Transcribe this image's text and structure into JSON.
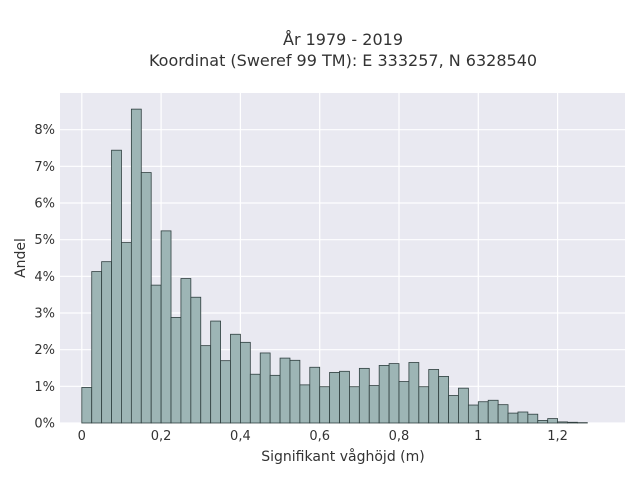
{
  "chart_data": {
    "type": "bar",
    "title_lines": [
      "År 1979 - 2019",
      "Koordinat (Sweref 99 TM): E 333257, N 6328540"
    ],
    "xlabel": "Signifikant våghöjd (m)",
    "ylabel": "Andel",
    "bin_width": 0.025,
    "bins_start": [
      0.0,
      0.025,
      0.05,
      0.075,
      0.1,
      0.125,
      0.15,
      0.175,
      0.2,
      0.225,
      0.25,
      0.275,
      0.3,
      0.325,
      0.35,
      0.375,
      0.4,
      0.425,
      0.45,
      0.475,
      0.5,
      0.525,
      0.55,
      0.575,
      0.6,
      0.625,
      0.65,
      0.675,
      0.7,
      0.725,
      0.75,
      0.775,
      0.8,
      0.825,
      0.85,
      0.875,
      0.9,
      0.925,
      0.95,
      0.975,
      1.0,
      1.025,
      1.05,
      1.075,
      1.1,
      1.125,
      1.15,
      1.175,
      1.2,
      1.225,
      1.25,
      1.275
    ],
    "values": [
      0.97,
      4.13,
      4.4,
      7.44,
      4.92,
      8.56,
      6.83,
      3.76,
      5.24,
      2.88,
      3.94,
      3.43,
      2.11,
      2.78,
      1.7,
      2.42,
      2.2,
      1.33,
      1.91,
      1.3,
      1.77,
      1.71,
      1.04,
      1.52,
      0.99,
      1.38,
      1.41,
      0.99,
      1.49,
      1.02,
      1.57,
      1.62,
      1.13,
      1.65,
      0.99,
      1.46,
      1.27,
      0.75,
      0.95,
      0.49,
      0.58,
      0.62,
      0.5,
      0.27,
      0.3,
      0.24,
      0.07,
      0.12,
      0.03,
      0.02,
      0.01,
      0.0
    ],
    "xlim": [
      -0.055,
      1.37
    ],
    "ylim": [
      0,
      9
    ],
    "x_ticks": [
      0,
      0.2,
      0.4,
      0.6,
      0.8,
      1.0,
      1.2
    ],
    "x_tick_labels": [
      "0",
      "0,2",
      "0,4",
      "0,6",
      "0,8",
      "1",
      "1,2"
    ],
    "y_ticks": [
      0,
      1,
      2,
      3,
      4,
      5,
      6,
      7,
      8
    ],
    "y_tick_labels": [
      "0%",
      "1%",
      "2%",
      "3%",
      "4%",
      "5%",
      "6%",
      "7%",
      "8%"
    ],
    "colors": {
      "bar_fill": "#9db5b5",
      "bar_edge": "#2f3f3f",
      "plot_background": "#e9e9f1",
      "grid": "#ffffff"
    },
    "grid": true,
    "legend": "none"
  }
}
